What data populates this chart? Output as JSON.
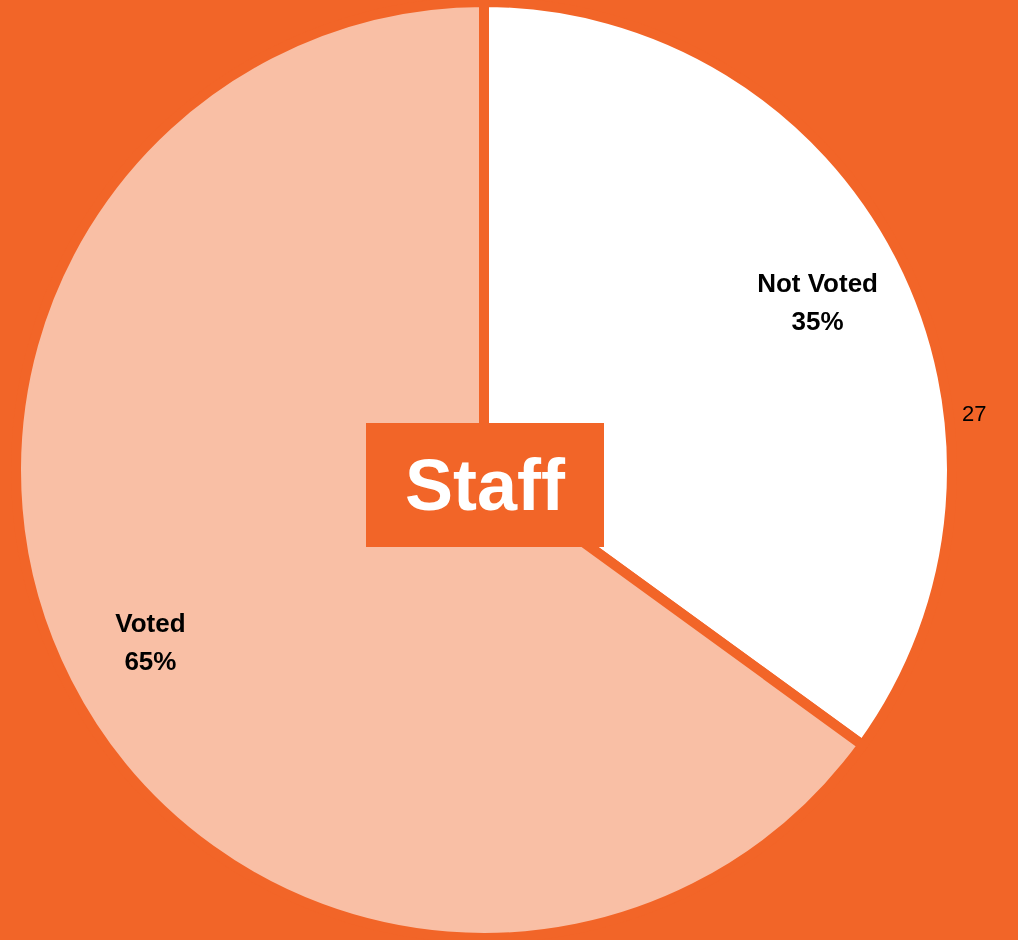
{
  "chart_data": {
    "type": "pie",
    "title": "Staff",
    "categories": [
      "Not Voted",
      "Voted"
    ],
    "values": [
      35,
      65
    ],
    "colors": [
      "#ffffff",
      "#f9bfa5"
    ],
    "value_labels": [
      "35%",
      "65%"
    ],
    "annotations": [
      "27"
    ]
  }
}
